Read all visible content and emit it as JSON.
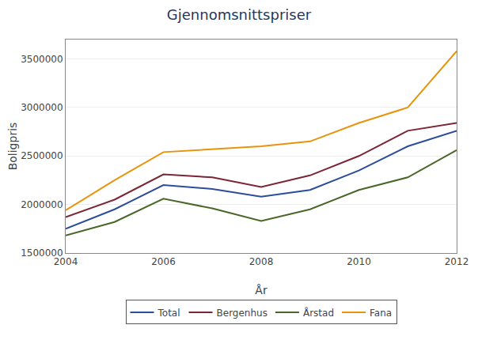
{
  "chart_data": {
    "type": "line",
    "title": "Gjennomsnittspriser",
    "xlabel": "År",
    "ylabel": "Boligpris",
    "x": [
      2004,
      2005,
      2006,
      2007,
      2008,
      2009,
      2010,
      2011,
      2012
    ],
    "series": [
      {
        "name": "Total",
        "color": "#2b4d9b",
        "values": [
          1750000,
          1950000,
          2200000,
          2160000,
          2080000,
          2150000,
          2350000,
          2600000,
          2760000
        ]
      },
      {
        "name": "Bergenhus",
        "color": "#7b2535",
        "values": [
          1870000,
          2050000,
          2310000,
          2280000,
          2180000,
          2300000,
          2500000,
          2760000,
          2840000
        ]
      },
      {
        "name": "Årstad",
        "color": "#4a6628",
        "values": [
          1680000,
          1820000,
          2060000,
          1960000,
          1830000,
          1950000,
          2150000,
          2280000,
          2560000
        ]
      },
      {
        "name": "Fana",
        "color": "#e8940a",
        "values": [
          1940000,
          2250000,
          2540000,
          2570000,
          2600000,
          2650000,
          2840000,
          3000000,
          3580000
        ]
      }
    ],
    "xlim": [
      2004,
      2012
    ],
    "xticks": [
      2004,
      2006,
      2008,
      2010,
      2012
    ],
    "ylim": [
      1500000,
      3700000
    ],
    "yticks": [
      1500000,
      2000000,
      2500000,
      3000000,
      3500000
    ],
    "grid": "y",
    "legend": "bottom"
  }
}
